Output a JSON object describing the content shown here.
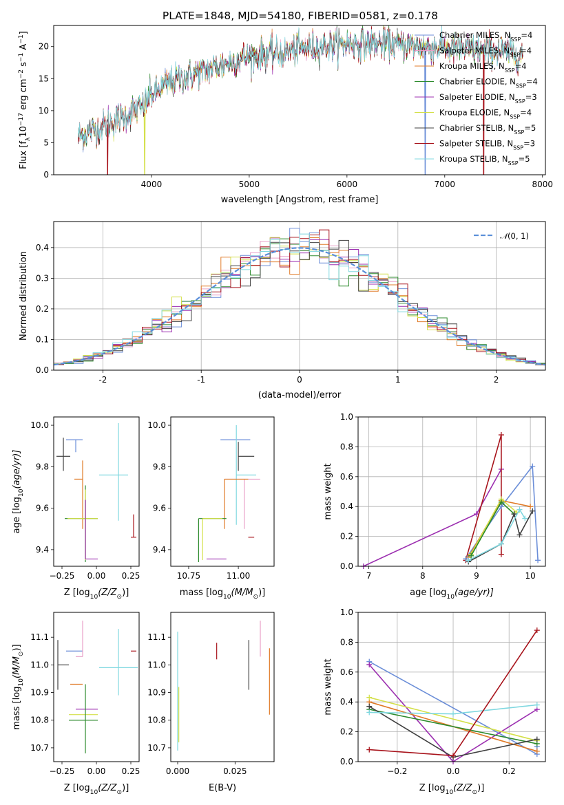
{
  "title": "PLATE=1848, MJD=54180, FIBERID=0581, z=0.178",
  "colors": {
    "Chabrier MILES": "#6b8ed8",
    "Salpeter MILES": "#e8a0c8",
    "Kroupa MILES": "#e07b28",
    "Chabrier ELODIE": "#2c8a2c",
    "Salpeter ELODIE": "#9c2fb0",
    "Kroupa ELODIE": "#d4e04a",
    "Chabrier STELIB": "#404040",
    "Salpeter STELIB": "#a8141c",
    "Kroupa STELIB": "#80d8e0",
    "normal": "#5b8fd9"
  },
  "chart_data": [
    {
      "id": "spectrum",
      "type": "line",
      "xlabel": "wavelength [Angstrom, rest frame]",
      "ylabel_parts": [
        "Flux [f",
        "λ",
        "10",
        "−17",
        " erg cm",
        "−2",
        " s",
        "−1",
        " A",
        "−1",
        "]"
      ],
      "xlim": [
        3000,
        8030
      ],
      "ylim": [
        0,
        23.3
      ],
      "xticks": [
        4000,
        5000,
        6000,
        7000,
        8000
      ],
      "yticks": [
        0,
        5,
        10,
        15,
        20
      ],
      "legend_position": "upper-right",
      "series": [
        {
          "name": "Chabrier MILES",
          "nssp": "4",
          "xrange": [
            3250,
            7800
          ],
          "spikes": [
            [
              6800,
              0
            ]
          ]
        },
        {
          "name": "Salpeter MILES",
          "nssp": "4",
          "xrange": [
            3250,
            7800
          ],
          "spikes": []
        },
        {
          "name": "Kroupa MILES",
          "nssp": "4",
          "xrange": [
            3250,
            7800
          ],
          "spikes": []
        },
        {
          "name": "Chabrier ELODIE",
          "nssp": "4",
          "xrange": [
            3250,
            7800
          ],
          "spikes": []
        },
        {
          "name": "Salpeter ELODIE",
          "nssp": "3",
          "xrange": [
            3250,
            7800
          ],
          "spikes": []
        },
        {
          "name": "Kroupa ELODIE",
          "nssp": "4",
          "xrange": [
            3250,
            7800
          ],
          "spikes": [
            [
              3930,
              0
            ]
          ]
        },
        {
          "name": "Chabrier STELIB",
          "nssp": "5",
          "xrange": [
            3250,
            7800
          ],
          "spikes": []
        },
        {
          "name": "Salpeter STELIB",
          "nssp": "3",
          "xrange": [
            3250,
            7800
          ],
          "spikes": [
            [
              3550,
              0
            ],
            [
              7400,
              0
            ]
          ]
        },
        {
          "name": "Kroupa STELIB",
          "nssp": "5",
          "xrange": [
            3250,
            7800
          ],
          "spikes": []
        }
      ],
      "continuum": [
        [
          3250,
          6.0
        ],
        [
          3500,
          7.5
        ],
        [
          3700,
          9.0
        ],
        [
          3900,
          10.5
        ],
        [
          4000,
          12.5
        ],
        [
          4200,
          14.5
        ],
        [
          4500,
          16.0
        ],
        [
          4800,
          17.5
        ],
        [
          5000,
          18.5
        ],
        [
          5300,
          19.0
        ],
        [
          5600,
          19.8
        ],
        [
          6000,
          20.5
        ],
        [
          6500,
          20.3
        ],
        [
          7000,
          19.8
        ],
        [
          7500,
          19.3
        ],
        [
          7800,
          18.8
        ]
      ]
    },
    {
      "id": "residuals",
      "type": "histogram",
      "xlabel": "(data-model)/error",
      "ylabel": "Normed distribution",
      "xlim": [
        -2.5,
        2.5
      ],
      "ylim": [
        0,
        0.485
      ],
      "xticks": [
        -2,
        -1,
        0,
        1,
        2
      ],
      "yticks": [
        0.0,
        0.1,
        0.2,
        0.3,
        0.4
      ],
      "grid": true,
      "bin_width": 0.1,
      "legend_position": "upper-right",
      "normal_label_parts": [
        "𝒩",
        "(0, 1)"
      ]
    },
    {
      "id": "age_vs_Z",
      "type": "errorbar",
      "xlabel_parts": [
        "Z [log",
        "10",
        "(Z/Z",
        "⊙",
        ")]"
      ],
      "ylabel_parts": [
        "age  [log",
        "10",
        "(age/yr)]"
      ],
      "xlim": [
        -0.31,
        0.31
      ],
      "ylim": [
        9.32,
        10.04
      ],
      "xticks": [
        -0.25,
        0.0,
        0.25
      ],
      "xtick_labels": [
        "−0.25",
        "0.00",
        "0.25"
      ],
      "yticks": [
        9.4,
        9.6,
        9.8,
        10.0
      ],
      "grid": false,
      "points": [
        {
          "series": "Chabrier STELIB",
          "x": -0.24,
          "xerr": [
            0.05,
            0.05
          ],
          "y": 9.85,
          "yerr": [
            0.07,
            0.09
          ]
        },
        {
          "series": "Chabrier MILES",
          "x": -0.15,
          "xerr": [
            0.07,
            0.05
          ],
          "y": 9.93,
          "yerr": [
            0.06,
            0.0
          ]
        },
        {
          "series": "Kroupa MILES",
          "x": -0.1,
          "xerr": [
            0.06,
            0.0
          ],
          "y": 9.74,
          "yerr": [
            0.24,
            0.09
          ]
        },
        {
          "series": "Chabrier ELODIE",
          "x": -0.08,
          "xerr": [
            0.15,
            0.09
          ],
          "y": 9.55,
          "yerr": [
            0.21,
            0.16
          ]
        },
        {
          "series": "Kroupa ELODIE",
          "x": -0.08,
          "xerr": [
            0.13,
            0.09
          ],
          "y": 9.55,
          "yerr": [
            0.2,
            0.14
          ]
        },
        {
          "series": "Salpeter ELODIE",
          "x": -0.08,
          "xerr": [
            0.0,
            0.09
          ],
          "y": 9.355,
          "yerr": [
            0.0,
            0.285
          ]
        },
        {
          "series": "Kroupa STELIB",
          "x": 0.16,
          "xerr": [
            0.14,
            0.07
          ],
          "y": 9.76,
          "yerr": [
            0.22,
            0.25
          ]
        },
        {
          "series": "Salpeter STELIB",
          "x": 0.27,
          "xerr": [
            0.02,
            0.02
          ],
          "y": 9.46,
          "yerr": [
            0.0,
            0.11
          ]
        }
      ]
    },
    {
      "id": "age_vs_mass",
      "type": "errorbar",
      "xlabel_parts": [
        "mass [log",
        "10",
        "(M/M",
        "⊙",
        ")]"
      ],
      "ylabel": "",
      "xlim": [
        10.66,
        11.18
      ],
      "ylim": [
        9.32,
        10.04
      ],
      "xticks": [
        10.75,
        11.0
      ],
      "xtick_labels": [
        "10.75",
        "11.00"
      ],
      "yticks": [
        9.4,
        9.6,
        9.8,
        10.0
      ],
      "grid": false,
      "points": [
        {
          "series": "Chabrier MILES",
          "x": 11.03,
          "xerr": [
            0.12,
            0.03
          ],
          "y": 9.93,
          "yerr": [
            0.0,
            0.0
          ]
        },
        {
          "series": "Chabrier STELIB",
          "x": 11.0,
          "xerr": [
            0.0,
            0.08
          ],
          "y": 9.85,
          "yerr": [
            0.07,
            0.07
          ]
        },
        {
          "series": "Kroupa STELIB",
          "x": 10.99,
          "xerr": [
            0.0,
            0.1
          ],
          "y": 9.76,
          "yerr": [
            0.24,
            0.24
          ]
        },
        {
          "series": "Salpeter MILES",
          "x": 11.03,
          "xerr": [
            0.1,
            0.08
          ],
          "y": 9.74,
          "yerr": [
            0.24,
            0.0
          ]
        },
        {
          "series": "Kroupa MILES",
          "x": 10.93,
          "xerr": [
            0.0,
            0.12
          ],
          "y": 9.74,
          "yerr": [
            0.24,
            0.0
          ]
        },
        {
          "series": "Chabrier ELODIE",
          "x": 10.8,
          "xerr": [
            0.0,
            0.14
          ],
          "y": 9.55,
          "yerr": [
            0.21,
            0.0
          ]
        },
        {
          "series": "Kroupa ELODIE",
          "x": 10.82,
          "xerr": [
            0.0,
            0.1
          ],
          "y": 9.55,
          "yerr": [
            0.2,
            0.0
          ]
        },
        {
          "series": "Salpeter ELODIE",
          "x": 10.84,
          "xerr": [
            0.0,
            0.1
          ],
          "y": 9.355,
          "yerr": [
            0.0,
            0.0
          ]
        },
        {
          "series": "Salpeter STELIB",
          "x": 11.05,
          "xerr": [
            0.0,
            0.03
          ],
          "y": 9.46,
          "yerr": [
            0.0,
            0.0
          ]
        }
      ]
    },
    {
      "id": "weight_vs_age",
      "type": "line",
      "xlabel_parts": [
        "age  [log",
        "10",
        "(age/yr)]"
      ],
      "ylabel": "mass weight",
      "xlim": [
        6.8,
        10.28
      ],
      "ylim": [
        0,
        1.0
      ],
      "xticks": [
        7,
        8,
        9,
        10
      ],
      "yticks": [
        0.0,
        0.2,
        0.4,
        0.6,
        0.8,
        1.0
      ],
      "grid": true,
      "series": [
        {
          "name": "Salpeter ELODIE",
          "x": [
            6.9,
            9.0,
            9.46
          ],
          "y": [
            0.0,
            0.35,
            0.65
          ]
        },
        {
          "name": "Salpeter STELIB",
          "x": [
            8.8,
            9.46,
            9.46
          ],
          "y": [
            0.04,
            0.88,
            0.08
          ]
        },
        {
          "name": "Chabrier MILES",
          "x": [
            8.8,
            9.46,
            10.04,
            10.14
          ],
          "y": [
            0.05,
            0.4,
            0.67,
            0.04
          ]
        },
        {
          "name": "Kroupa MILES",
          "x": [
            8.85,
            9.46,
            10.0
          ],
          "y": [
            0.06,
            0.44,
            0.4
          ]
        },
        {
          "name": "Kroupa ELODIE",
          "x": [
            8.9,
            9.46,
            9.75
          ],
          "y": [
            0.08,
            0.45,
            0.36
          ]
        },
        {
          "name": "Chabrier ELODIE",
          "x": [
            8.9,
            9.46,
            9.7
          ],
          "y": [
            0.07,
            0.43,
            0.35
          ]
        },
        {
          "name": "Chabrier STELIB",
          "x": [
            8.85,
            9.46,
            9.7,
            9.8,
            10.04
          ],
          "y": [
            0.03,
            0.15,
            0.35,
            0.21,
            0.37
          ]
        },
        {
          "name": "Kroupa STELIB",
          "x": [
            8.85,
            9.46,
            9.8,
            9.9
          ],
          "y": [
            0.04,
            0.15,
            0.38,
            0.32
          ]
        }
      ]
    },
    {
      "id": "mass_vs_Z",
      "type": "errorbar",
      "xlabel_parts": [
        "Z [log",
        "10",
        "(Z/Z",
        "⊙",
        ")]"
      ],
      "ylabel_parts": [
        "mass [log",
        "10",
        "(M/M",
        "⊙",
        ")]"
      ],
      "xlim": [
        -0.31,
        0.31
      ],
      "ylim": [
        10.65,
        11.19
      ],
      "xticks": [
        -0.25,
        0.0,
        0.25
      ],
      "xtick_labels": [
        "−0.25",
        "0.00",
        "0.25"
      ],
      "yticks": [
        10.7,
        10.8,
        10.9,
        11.0,
        11.1
      ],
      "grid": false,
      "points": [
        {
          "series": "Chabrier STELIB",
          "x": -0.28,
          "xerr": [
            0.0,
            0.08
          ],
          "y": 11.0,
          "yerr": [
            0.09,
            0.09
          ]
        },
        {
          "series": "Chabrier MILES",
          "x": -0.15,
          "xerr": [
            0.07,
            0.05
          ],
          "y": 11.05,
          "yerr": [
            0.0,
            0.0
          ]
        },
        {
          "series": "Salpeter MILES",
          "x": -0.1,
          "xerr": [
            0.05,
            0.0
          ],
          "y": 11.03,
          "yerr": [
            0.0,
            0.13
          ]
        },
        {
          "series": "Kroupa MILES",
          "x": -0.1,
          "xerr": [
            0.09,
            0.0
          ],
          "y": 10.93,
          "yerr": [
            0.0,
            0.0
          ]
        },
        {
          "series": "Salpeter ELODIE",
          "x": -0.08,
          "xerr": [
            0.07,
            0.09
          ],
          "y": 10.84,
          "yerr": [
            0.0,
            0.0
          ]
        },
        {
          "series": "Kroupa ELODIE",
          "x": -0.08,
          "xerr": [
            0.12,
            0.09
          ],
          "y": 10.82,
          "yerr": [
            0.0,
            0.0
          ]
        },
        {
          "series": "Chabrier ELODIE",
          "x": -0.08,
          "xerr": [
            0.12,
            0.09
          ],
          "y": 10.8,
          "yerr": [
            0.12,
            0.13
          ]
        },
        {
          "series": "Kroupa STELIB",
          "x": 0.16,
          "xerr": [
            0.14,
            0.14
          ],
          "y": 10.99,
          "yerr": [
            0.1,
            0.14
          ]
        },
        {
          "series": "Salpeter STELIB",
          "x": 0.27,
          "xerr": [
            0.02,
            0.02
          ],
          "y": 11.05,
          "yerr": [
            0.0,
            0.0
          ]
        }
      ]
    },
    {
      "id": "mass_vs_ebv",
      "type": "errorbar",
      "xlabel": "E(B-V)",
      "ylabel": "",
      "xlim": [
        -0.003,
        0.042
      ],
      "ylim": [
        10.65,
        11.19
      ],
      "xticks": [
        0.0,
        0.025
      ],
      "xtick_labels": [
        "0.000",
        "0.025"
      ],
      "yticks": [
        10.7,
        10.8,
        10.9,
        11.0,
        11.1
      ],
      "grid": false,
      "points": [
        {
          "series": "Kroupa STELIB",
          "x": 0.0,
          "y": 10.99,
          "yerr": [
            0.3,
            0.13
          ]
        },
        {
          "series": "Kroupa ELODIE",
          "x": 0.0005,
          "y": 10.82,
          "yerr": [
            0.1,
            0.1
          ]
        },
        {
          "series": "Salpeter STELIB",
          "x": 0.017,
          "y": 11.05,
          "yerr": [
            0.03,
            0.03
          ]
        },
        {
          "series": "Chabrier STELIB",
          "x": 0.031,
          "y": 11.0,
          "yerr": [
            0.09,
            0.09
          ]
        },
        {
          "series": "Salpeter MILES",
          "x": 0.036,
          "y": 11.03,
          "yerr": [
            0.0,
            0.13
          ]
        },
        {
          "series": "Kroupa MILES",
          "x": 0.04,
          "y": 10.93,
          "yerr": [
            0.11,
            0.13
          ]
        }
      ]
    },
    {
      "id": "weight_vs_Z",
      "type": "line",
      "xlabel_parts": [
        "Z [log",
        "10",
        "(Z/Z",
        "⊙",
        ")]"
      ],
      "ylabel": "mass weight",
      "xlim": [
        -0.34,
        0.33
      ],
      "ylim": [
        0,
        1.0
      ],
      "xticks": [
        -0.2,
        0.0,
        0.2
      ],
      "xtick_labels": [
        "−0.2",
        "0.0",
        "0.2"
      ],
      "yticks": [
        0.0,
        0.2,
        0.4,
        0.6,
        0.8,
        1.0
      ],
      "grid": true,
      "series": [
        {
          "name": "Chabrier MILES",
          "x": [
            -0.3,
            0.3,
            0.3
          ],
          "y": [
            0.67,
            0.05,
            0.1
          ]
        },
        {
          "name": "Salpeter ELODIE",
          "x": [
            -0.3,
            0.0,
            0.3
          ],
          "y": [
            0.65,
            0.0,
            0.35
          ]
        },
        {
          "name": "Kroupa MILES",
          "x": [
            -0.3,
            0.3
          ],
          "y": [
            0.4,
            0.07
          ]
        },
        {
          "name": "Kroupa ELODIE",
          "x": [
            -0.3,
            0.3
          ],
          "y": [
            0.43,
            0.14
          ]
        },
        {
          "name": "Chabrier ELODIE",
          "x": [
            -0.3,
            0.3
          ],
          "y": [
            0.35,
            0.12
          ]
        },
        {
          "name": "Chabrier STELIB",
          "x": [
            -0.3,
            0.0,
            0.3
          ],
          "y": [
            0.37,
            0.03,
            0.15
          ]
        },
        {
          "name": "Kroupa STELIB",
          "x": [
            -0.3,
            0.0,
            0.3
          ],
          "y": [
            0.33,
            0.32,
            0.38
          ]
        },
        {
          "name": "Salpeter STELIB",
          "x": [
            -0.3,
            0.0,
            0.3
          ],
          "y": [
            0.08,
            0.04,
            0.88
          ]
        }
      ]
    }
  ]
}
